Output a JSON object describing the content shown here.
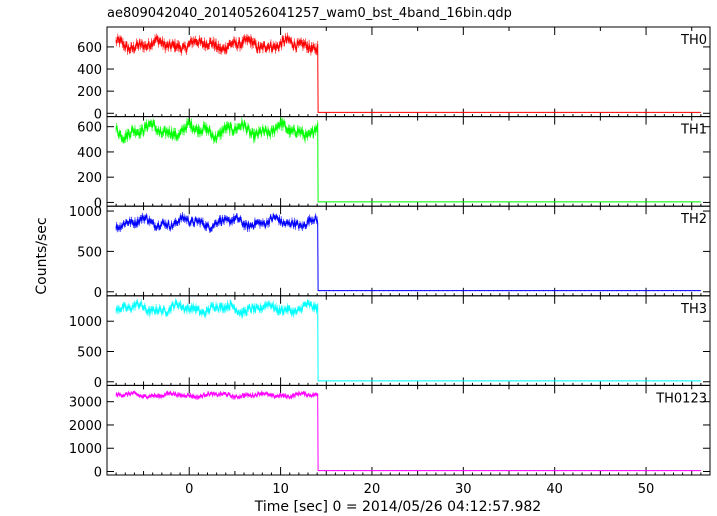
{
  "window": {
    "title": "ae809042040_20140526041257_wam0_bst_4band_16bin.qdp"
  },
  "chart_data": {
    "type": "line",
    "title": "ae809042040_20140526041257_wam0_bst_4band_16bin.qdp",
    "xlabel": "Time [sec] 0 = 2014/05/26 04:12:57.982",
    "ylabel": "Counts/sec",
    "xlim": [
      -9,
      57
    ],
    "x_ticks": [
      0,
      10,
      20,
      30,
      40,
      50
    ],
    "x_tick_labels": [
      "0",
      "10",
      "20",
      "30",
      "40",
      "50"
    ],
    "grid": false,
    "series": [
      {
        "name": "TH0",
        "color": "#ff0000",
        "ylim": [
          -30,
          780
        ],
        "y_ticks": [
          0,
          200,
          400,
          600
        ],
        "burst": {
          "x_start": -8,
          "x_end": 14.1,
          "mean": 620,
          "amplitude": 45,
          "noise": 40,
          "errbar": 28
        },
        "post_level": 8,
        "x_end": 56
      },
      {
        "name": "TH1",
        "color": "#00ff00",
        "ylim": [
          -30,
          680
        ],
        "y_ticks": [
          0,
          200,
          400,
          600
        ],
        "burst": {
          "x_start": -8,
          "x_end": 14.1,
          "mean": 570,
          "amplitude": 55,
          "noise": 35,
          "errbar": 25
        },
        "post_level": 4,
        "x_end": 56
      },
      {
        "name": "TH2",
        "color": "#0000ff",
        "ylim": [
          -50,
          1060
        ],
        "y_ticks": [
          0,
          500,
          1000
        ],
        "burst": {
          "x_start": -8,
          "x_end": 14.1,
          "mean": 860,
          "amplitude": 60,
          "noise": 45,
          "errbar": 30
        },
        "post_level": 15,
        "x_end": 56
      },
      {
        "name": "TH3",
        "color": "#00ffff",
        "ylim": [
          -60,
          1420
        ],
        "y_ticks": [
          0,
          500,
          1000
        ],
        "burst": {
          "x_start": -8,
          "x_end": 14.1,
          "mean": 1210,
          "amplitude": 80,
          "noise": 60,
          "errbar": 40
        },
        "post_level": 15,
        "x_end": 56
      },
      {
        "name": "TH0123",
        "color": "#ff00ff",
        "ylim": [
          -150,
          3700
        ],
        "y_ticks": [
          0,
          1000,
          2000,
          3000
        ],
        "burst": {
          "x_start": -8,
          "x_end": 14.1,
          "mean": 3280,
          "amplitude": 90,
          "noise": 70,
          "errbar": 60
        },
        "post_level": 40,
        "x_end": 56
      }
    ]
  }
}
